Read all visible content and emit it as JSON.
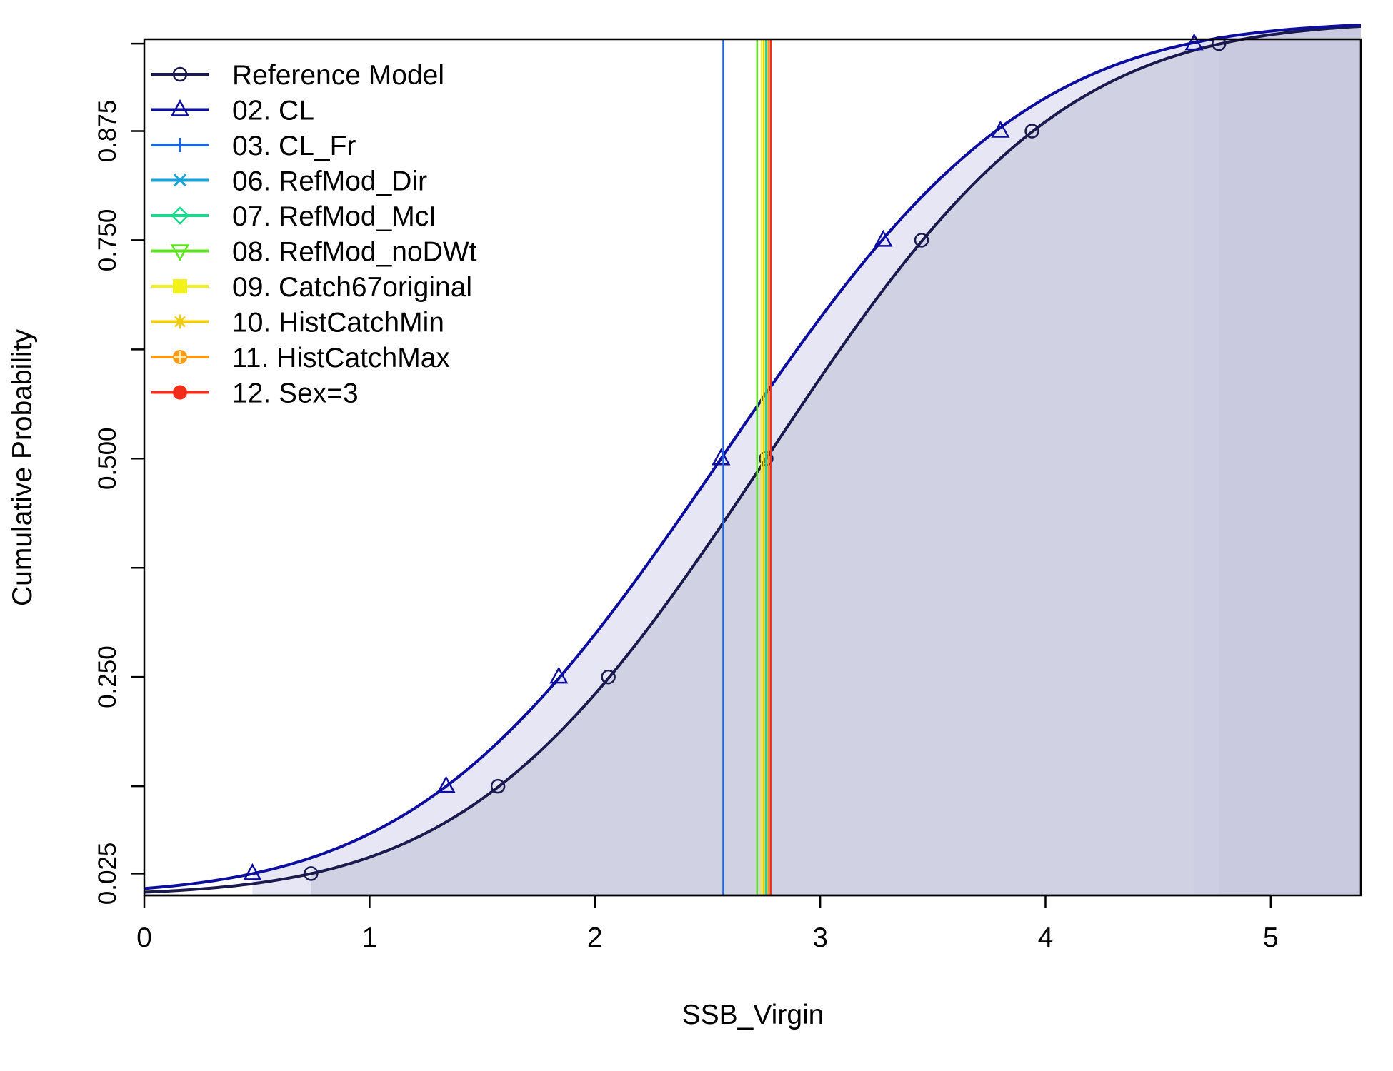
{
  "chart_data": {
    "type": "line",
    "title": "",
    "xlabel": "SSB_Virgin",
    "ylabel": "Cumulative Probability",
    "xlim": [
      0,
      5.4
    ],
    "ylim": [
      0.0,
      0.98
    ],
    "x_ticks": [
      0,
      1,
      2,
      3,
      4,
      5
    ],
    "x_tick_labels": [
      "0",
      "1",
      "2",
      "3",
      "4",
      "5"
    ],
    "y_ticks": [
      0.025,
      0.125,
      0.25,
      0.375,
      0.5,
      0.625,
      0.75,
      0.875,
      0.975
    ],
    "y_tick_labels": [
      "0.025",
      "",
      "0.250",
      "",
      "0.500",
      "",
      "0.750",
      "0.875",
      ""
    ],
    "grid": false,
    "legend_position": "top-left",
    "series": [
      {
        "name": "Reference Model",
        "color": "#1a1a4e",
        "marker": "circle",
        "curve": {
          "type": "normal_cdf",
          "mean": 2.76,
          "sd": 1.03
        },
        "points": [
          [
            0.74,
            0.025
          ],
          [
            1.57,
            0.125
          ],
          [
            2.06,
            0.25
          ],
          [
            2.76,
            0.5
          ],
          [
            3.45,
            0.75
          ],
          [
            3.94,
            0.875
          ],
          [
            4.77,
            0.975
          ]
        ],
        "interval_95": [
          0.74,
          4.77
        ]
      },
      {
        "name": "02. CL",
        "color": "#0d0d9e",
        "marker": "triangle",
        "curve": {
          "type": "normal_cdf",
          "mean": 2.56,
          "sd": 1.06
        },
        "points": [
          [
            0.48,
            0.025
          ],
          [
            1.34,
            0.125
          ],
          [
            1.84,
            0.25
          ],
          [
            2.56,
            0.5
          ],
          [
            3.28,
            0.75
          ],
          [
            3.8,
            0.875
          ],
          [
            4.66,
            0.975
          ]
        ],
        "interval_95": [
          0.48,
          4.66
        ]
      },
      {
        "name": "03. CL_Fr",
        "color": "#1a66e6",
        "marker": "plus",
        "vline": 2.57
      },
      {
        "name": "06. RefMod_Dir",
        "color": "#1aa3d9",
        "marker": "x",
        "vline": 2.76
      },
      {
        "name": "07. RefMod_McI",
        "color": "#1ad98c",
        "marker": "diamond",
        "vline": 2.76
      },
      {
        "name": "08. RefMod_noDWt",
        "color": "#5ae61a",
        "marker": "triangle-down",
        "vline": 2.72
      },
      {
        "name": "09. Catch67original",
        "color": "#f2f21a",
        "marker": "square",
        "vline": 2.74
      },
      {
        "name": "10. HistCatchMin",
        "color": "#f2cc00",
        "marker": "asterisk",
        "vline": 2.75
      },
      {
        "name": "11. HistCatchMax",
        "color": "#f29a1a",
        "marker": "circle-plus",
        "vline": 2.77
      },
      {
        "name": "12. Sex=3",
        "color": "#f22e1a",
        "marker": "circle-filled",
        "vline": 2.78
      }
    ]
  }
}
